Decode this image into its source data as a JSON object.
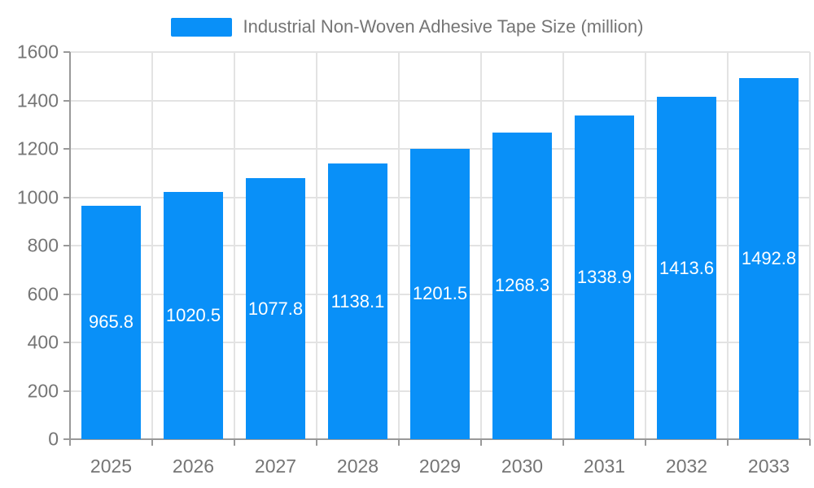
{
  "legend": {
    "label": "Industrial Non-Woven Adhesive Tape Size (million)",
    "swatch_color": "#0990f8"
  },
  "chart_data": {
    "type": "bar",
    "title": "Industrial Non-Woven Adhesive Tape Size (million)",
    "categories": [
      "2025",
      "2026",
      "2027",
      "2028",
      "2029",
      "2030",
      "2031",
      "2032",
      "2033"
    ],
    "values": [
      965.8,
      1020.5,
      1077.8,
      1138.1,
      1201.5,
      1268.3,
      1338.9,
      1413.6,
      1492.8
    ],
    "xlabel": "",
    "ylabel": "",
    "ylim": [
      0,
      1600
    ],
    "ytick_step": 200,
    "yticks": [
      "0",
      "200",
      "400",
      "600",
      "800",
      "1000",
      "1200",
      "1400",
      "1600"
    ],
    "grid": true,
    "legend_position": "top",
    "bar_color": "#0990f8",
    "bar_label_color": "#ffffff",
    "gridline_color": "#e3e3e3",
    "axis_color": "#999999",
    "text_color": "#757575"
  }
}
